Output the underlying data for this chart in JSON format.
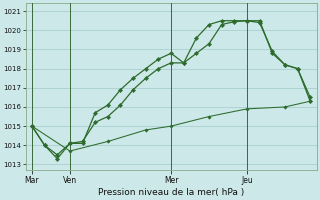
{
  "background_color": "#cce8e8",
  "grid_color": "#aacece",
  "line_color": "#2d6b2d",
  "title": "Pression niveau de la mer( hPa )",
  "day_labels": [
    "Mar",
    "Ven",
    "Mer",
    "Jeu"
  ],
  "day_positions": [
    0,
    9,
    33,
    51
  ],
  "total_points": 67,
  "ylim": [
    1012.7,
    1021.4
  ],
  "yticks": [
    1013,
    1014,
    1015,
    1016,
    1017,
    1018,
    1019,
    1020,
    1021
  ],
  "series1_x": [
    0,
    3,
    6,
    9,
    12,
    15,
    18,
    21,
    24,
    27,
    30,
    33,
    36,
    39,
    42,
    45,
    48,
    51,
    54,
    57,
    60,
    63,
    66
  ],
  "series1_y": [
    1015.0,
    1014.0,
    1013.5,
    1014.1,
    1014.2,
    1015.2,
    1015.5,
    1016.1,
    1016.9,
    1017.5,
    1018.0,
    1018.3,
    1018.3,
    1018.8,
    1019.3,
    1020.3,
    1020.45,
    1020.5,
    1020.4,
    1018.9,
    1018.2,
    1018.0,
    1016.3
  ],
  "series2_x": [
    0,
    3,
    6,
    9,
    12,
    15,
    18,
    21,
    24,
    27,
    30,
    33,
    36,
    39,
    42,
    45,
    48,
    51,
    54,
    57,
    60,
    63,
    66
  ],
  "series2_y": [
    1015.0,
    1014.0,
    1013.3,
    1014.1,
    1014.1,
    1015.7,
    1016.1,
    1016.9,
    1017.5,
    1018.0,
    1018.5,
    1018.8,
    1018.3,
    1019.6,
    1020.3,
    1020.5,
    1020.5,
    1020.5,
    1020.5,
    1018.8,
    1018.2,
    1018.0,
    1016.5
  ],
  "series3_x": [
    0,
    9,
    18,
    27,
    33,
    42,
    51,
    60,
    66
  ],
  "series3_y": [
    1015.0,
    1013.7,
    1014.2,
    1014.8,
    1015.0,
    1015.5,
    1015.9,
    1016.0,
    1016.3
  ],
  "vline_positions": [
    0,
    9,
    33,
    51
  ]
}
